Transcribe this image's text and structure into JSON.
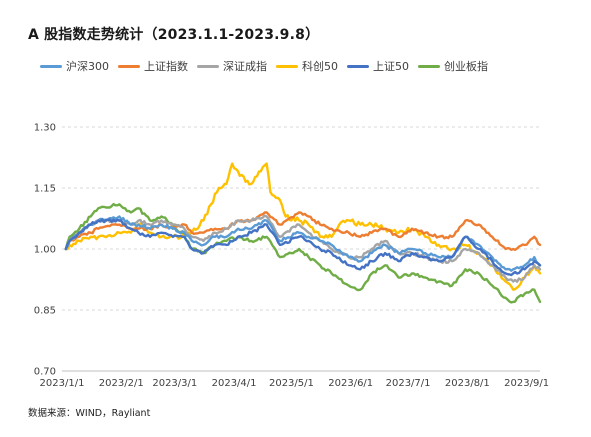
{
  "title": "A 股指数走势统计（2023.1.1-2023.9.8）",
  "source": "数据来源：WIND，Rayliant",
  "colors": {
    "hs300": "#5b9bd5",
    "sz": "#ed7d31",
    "szcz": "#a5a5a5",
    "kc50": "#ffc000",
    "sz50": "#4472c4",
    "cyb": "#70ad47"
  },
  "chart_data": {
    "type": "line",
    "title": "A 股指数走势统计（2023.1.1-2023.9.8）",
    "xlabel": "",
    "ylabel": "",
    "ylim": [
      0.7,
      1.3
    ],
    "yticks": [
      "0.70",
      "0.85",
      "1.00",
      "1.15",
      "1.30"
    ],
    "xticks": [
      "2023/1/1",
      "2023/2/1",
      "2023/3/1",
      "2023/4/1",
      "2023/5/1",
      "2023/6/1",
      "2023/7/1",
      "2023/8/1",
      "2023/9/1"
    ],
    "grid": true,
    "legend": "top",
    "series": [
      {
        "key": "hs300",
        "name": "沪深300",
        "points": [
          [
            "2023-01-03",
            1.0
          ],
          [
            "2023-01-05",
            1.02
          ],
          [
            "2023-01-10",
            1.04
          ],
          [
            "2023-01-16",
            1.06
          ],
          [
            "2023-01-20",
            1.07
          ],
          [
            "2023-01-31",
            1.08
          ],
          [
            "2023-02-06",
            1.06
          ],
          [
            "2023-02-10",
            1.06
          ],
          [
            "2023-02-16",
            1.05
          ],
          [
            "2023-02-22",
            1.06
          ],
          [
            "2023-02-28",
            1.05
          ],
          [
            "2023-03-06",
            1.04
          ],
          [
            "2023-03-10",
            1.02
          ],
          [
            "2023-03-16",
            1.01
          ],
          [
            "2023-03-22",
            1.03
          ],
          [
            "2023-03-28",
            1.03
          ],
          [
            "2023-04-03",
            1.05
          ],
          [
            "2023-04-10",
            1.05
          ],
          [
            "2023-04-18",
            1.07
          ],
          [
            "2023-04-25",
            1.02
          ],
          [
            "2023-05-05",
            1.04
          ],
          [
            "2023-05-10",
            1.03
          ],
          [
            "2023-05-16",
            1.02
          ],
          [
            "2023-05-22",
            1.01
          ],
          [
            "2023-05-31",
            0.98
          ],
          [
            "2023-06-06",
            0.97
          ],
          [
            "2023-06-12",
            0.99
          ],
          [
            "2023-06-19",
            1.01
          ],
          [
            "2023-06-26",
            0.99
          ],
          [
            "2023-07-03",
            1.0
          ],
          [
            "2023-07-10",
            0.99
          ],
          [
            "2023-07-17",
            0.98
          ],
          [
            "2023-07-24",
            0.98
          ],
          [
            "2023-07-31",
            1.03
          ],
          [
            "2023-08-07",
            1.01
          ],
          [
            "2023-08-14",
            0.98
          ],
          [
            "2023-08-21",
            0.95
          ],
          [
            "2023-08-25",
            0.95
          ],
          [
            "2023-08-31",
            0.96
          ],
          [
            "2023-09-05",
            0.98
          ],
          [
            "2023-09-08",
            0.96
          ]
        ]
      },
      {
        "key": "sz",
        "name": "上证指数",
        "points": [
          [
            "2023-01-03",
            1.0
          ],
          [
            "2023-01-05",
            1.02
          ],
          [
            "2023-01-10",
            1.03
          ],
          [
            "2023-01-16",
            1.04
          ],
          [
            "2023-01-20",
            1.05
          ],
          [
            "2023-01-31",
            1.06
          ],
          [
            "2023-02-06",
            1.05
          ],
          [
            "2023-02-10",
            1.05
          ],
          [
            "2023-02-16",
            1.05
          ],
          [
            "2023-02-22",
            1.06
          ],
          [
            "2023-02-28",
            1.05
          ],
          [
            "2023-03-06",
            1.06
          ],
          [
            "2023-03-10",
            1.04
          ],
          [
            "2023-03-16",
            1.04
          ],
          [
            "2023-03-22",
            1.05
          ],
          [
            "2023-03-28",
            1.05
          ],
          [
            "2023-04-03",
            1.07
          ],
          [
            "2023-04-10",
            1.07
          ],
          [
            "2023-04-18",
            1.09
          ],
          [
            "2023-04-25",
            1.06
          ],
          [
            "2023-05-05",
            1.09
          ],
          [
            "2023-05-10",
            1.08
          ],
          [
            "2023-05-16",
            1.06
          ],
          [
            "2023-05-22",
            1.05
          ],
          [
            "2023-05-31",
            1.04
          ],
          [
            "2023-06-06",
            1.03
          ],
          [
            "2023-06-12",
            1.04
          ],
          [
            "2023-06-19",
            1.05
          ],
          [
            "2023-06-26",
            1.03
          ],
          [
            "2023-07-03",
            1.05
          ],
          [
            "2023-07-10",
            1.04
          ],
          [
            "2023-07-17",
            1.03
          ],
          [
            "2023-07-24",
            1.03
          ],
          [
            "2023-07-31",
            1.07
          ],
          [
            "2023-08-07",
            1.06
          ],
          [
            "2023-08-14",
            1.03
          ],
          [
            "2023-08-21",
            1.0
          ],
          [
            "2023-08-25",
            1.0
          ],
          [
            "2023-08-31",
            1.01
          ],
          [
            "2023-09-05",
            1.03
          ],
          [
            "2023-09-08",
            1.01
          ]
        ]
      },
      {
        "key": "szcz",
        "name": "深证成指",
        "points": [
          [
            "2023-01-03",
            1.0
          ],
          [
            "2023-01-05",
            1.02
          ],
          [
            "2023-01-10",
            1.04
          ],
          [
            "2023-01-16",
            1.06
          ],
          [
            "2023-01-20",
            1.07
          ],
          [
            "2023-01-31",
            1.07
          ],
          [
            "2023-02-06",
            1.06
          ],
          [
            "2023-02-10",
            1.07
          ],
          [
            "2023-02-16",
            1.06
          ],
          [
            "2023-02-22",
            1.07
          ],
          [
            "2023-02-28",
            1.06
          ],
          [
            "2023-03-06",
            1.05
          ],
          [
            "2023-03-10",
            1.03
          ],
          [
            "2023-03-16",
            1.02
          ],
          [
            "2023-03-22",
            1.04
          ],
          [
            "2023-03-28",
            1.05
          ],
          [
            "2023-04-03",
            1.07
          ],
          [
            "2023-04-10",
            1.07
          ],
          [
            "2023-04-18",
            1.08
          ],
          [
            "2023-04-25",
            1.03
          ],
          [
            "2023-05-05",
            1.06
          ],
          [
            "2023-05-10",
            1.04
          ],
          [
            "2023-05-16",
            1.02
          ],
          [
            "2023-05-22",
            1.0
          ],
          [
            "2023-05-31",
            0.98
          ],
          [
            "2023-06-06",
            0.98
          ],
          [
            "2023-06-12",
            1.0
          ],
          [
            "2023-06-19",
            1.02
          ],
          [
            "2023-06-26",
            0.99
          ],
          [
            "2023-07-03",
            0.99
          ],
          [
            "2023-07-10",
            0.98
          ],
          [
            "2023-07-17",
            0.97
          ],
          [
            "2023-07-24",
            0.97
          ],
          [
            "2023-07-31",
            1.0
          ],
          [
            "2023-08-07",
            0.99
          ],
          [
            "2023-08-14",
            0.96
          ],
          [
            "2023-08-21",
            0.93
          ],
          [
            "2023-08-25",
            0.92
          ],
          [
            "2023-08-31",
            0.93
          ],
          [
            "2023-09-05",
            0.96
          ],
          [
            "2023-09-08",
            0.95
          ]
        ]
      },
      {
        "key": "kc50",
        "name": "科创50",
        "points": [
          [
            "2023-01-03",
            1.0
          ],
          [
            "2023-01-05",
            1.01
          ],
          [
            "2023-01-10",
            1.02
          ],
          [
            "2023-01-16",
            1.03
          ],
          [
            "2023-01-20",
            1.03
          ],
          [
            "2023-01-31",
            1.04
          ],
          [
            "2023-02-06",
            1.04
          ],
          [
            "2023-02-10",
            1.06
          ],
          [
            "2023-02-16",
            1.04
          ],
          [
            "2023-02-22",
            1.03
          ],
          [
            "2023-02-28",
            1.03
          ],
          [
            "2023-03-06",
            1.03
          ],
          [
            "2023-03-10",
            1.04
          ],
          [
            "2023-03-16",
            1.07
          ],
          [
            "2023-03-20",
            1.11
          ],
          [
            "2023-03-24",
            1.15
          ],
          [
            "2023-03-28",
            1.16
          ],
          [
            "2023-03-31",
            1.21
          ],
          [
            "2023-04-04",
            1.18
          ],
          [
            "2023-04-10",
            1.16
          ],
          [
            "2023-04-14",
            1.19
          ],
          [
            "2023-04-18",
            1.21
          ],
          [
            "2023-04-20",
            1.14
          ],
          [
            "2023-04-25",
            1.12
          ],
          [
            "2023-04-28",
            1.08
          ],
          [
            "2023-05-05",
            1.07
          ],
          [
            "2023-05-10",
            1.06
          ],
          [
            "2023-05-16",
            1.03
          ],
          [
            "2023-05-22",
            1.03
          ],
          [
            "2023-05-26",
            1.06
          ],
          [
            "2023-05-31",
            1.07
          ],
          [
            "2023-06-06",
            1.06
          ],
          [
            "2023-06-12",
            1.06
          ],
          [
            "2023-06-19",
            1.05
          ],
          [
            "2023-06-26",
            1.04
          ],
          [
            "2023-07-03",
            1.05
          ],
          [
            "2023-07-10",
            1.03
          ],
          [
            "2023-07-17",
            1.01
          ],
          [
            "2023-07-24",
            1.0
          ],
          [
            "2023-07-31",
            1.01
          ],
          [
            "2023-08-07",
            0.99
          ],
          [
            "2023-08-14",
            0.96
          ],
          [
            "2023-08-21",
            0.92
          ],
          [
            "2023-08-25",
            0.9
          ],
          [
            "2023-08-31",
            0.93
          ],
          [
            "2023-09-05",
            0.96
          ],
          [
            "2023-09-08",
            0.94
          ]
        ]
      },
      {
        "key": "sz50",
        "name": "上证50",
        "points": [
          [
            "2023-01-03",
            1.0
          ],
          [
            "2023-01-05",
            1.02
          ],
          [
            "2023-01-10",
            1.04
          ],
          [
            "2023-01-16",
            1.06
          ],
          [
            "2023-01-20",
            1.07
          ],
          [
            "2023-01-31",
            1.07
          ],
          [
            "2023-02-06",
            1.05
          ],
          [
            "2023-02-10",
            1.04
          ],
          [
            "2023-02-16",
            1.03
          ],
          [
            "2023-02-22",
            1.04
          ],
          [
            "2023-02-28",
            1.03
          ],
          [
            "2023-03-06",
            1.03
          ],
          [
            "2023-03-10",
            1.0
          ],
          [
            "2023-03-16",
            0.99
          ],
          [
            "2023-03-22",
            1.01
          ],
          [
            "2023-03-28",
            1.01
          ],
          [
            "2023-04-03",
            1.03
          ],
          [
            "2023-04-10",
            1.04
          ],
          [
            "2023-04-18",
            1.06
          ],
          [
            "2023-04-25",
            1.01
          ],
          [
            "2023-05-05",
            1.03
          ],
          [
            "2023-05-10",
            1.02
          ],
          [
            "2023-05-16",
            1.0
          ],
          [
            "2023-05-22",
            0.99
          ],
          [
            "2023-05-31",
            0.96
          ],
          [
            "2023-06-06",
            0.95
          ],
          [
            "2023-06-12",
            0.97
          ],
          [
            "2023-06-19",
            0.99
          ],
          [
            "2023-06-26",
            0.97
          ],
          [
            "2023-07-03",
            0.99
          ],
          [
            "2023-07-10",
            0.98
          ],
          [
            "2023-07-17",
            0.97
          ],
          [
            "2023-07-24",
            0.98
          ],
          [
            "2023-07-31",
            1.03
          ],
          [
            "2023-08-07",
            1.0
          ],
          [
            "2023-08-14",
            0.97
          ],
          [
            "2023-08-21",
            0.94
          ],
          [
            "2023-08-25",
            0.94
          ],
          [
            "2023-08-31",
            0.95
          ],
          [
            "2023-09-05",
            0.97
          ],
          [
            "2023-09-08",
            0.96
          ]
        ]
      },
      {
        "key": "cyb",
        "name": "创业板指",
        "points": [
          [
            "2023-01-03",
            1.0
          ],
          [
            "2023-01-05",
            1.03
          ],
          [
            "2023-01-10",
            1.05
          ],
          [
            "2023-01-16",
            1.08
          ],
          [
            "2023-01-20",
            1.1
          ],
          [
            "2023-01-31",
            1.11
          ],
          [
            "2023-02-06",
            1.09
          ],
          [
            "2023-02-10",
            1.1
          ],
          [
            "2023-02-16",
            1.07
          ],
          [
            "2023-02-22",
            1.08
          ],
          [
            "2023-02-28",
            1.06
          ],
          [
            "2023-03-06",
            1.03
          ],
          [
            "2023-03-10",
            1.0
          ],
          [
            "2023-03-16",
            0.99
          ],
          [
            "2023-03-22",
            1.01
          ],
          [
            "2023-03-28",
            1.02
          ],
          [
            "2023-04-03",
            1.03
          ],
          [
            "2023-04-10",
            1.02
          ],
          [
            "2023-04-18",
            1.03
          ],
          [
            "2023-04-25",
            0.98
          ],
          [
            "2023-05-05",
            1.0
          ],
          [
            "2023-05-10",
            0.98
          ],
          [
            "2023-05-16",
            0.96
          ],
          [
            "2023-05-22",
            0.94
          ],
          [
            "2023-05-31",
            0.91
          ],
          [
            "2023-06-06",
            0.9
          ],
          [
            "2023-06-12",
            0.94
          ],
          [
            "2023-06-19",
            0.96
          ],
          [
            "2023-06-26",
            0.93
          ],
          [
            "2023-07-03",
            0.94
          ],
          [
            "2023-07-10",
            0.93
          ],
          [
            "2023-07-17",
            0.92
          ],
          [
            "2023-07-24",
            0.91
          ],
          [
            "2023-07-31",
            0.95
          ],
          [
            "2023-08-07",
            0.94
          ],
          [
            "2023-08-14",
            0.91
          ],
          [
            "2023-08-21",
            0.88
          ],
          [
            "2023-08-25",
            0.87
          ],
          [
            "2023-08-31",
            0.89
          ],
          [
            "2023-09-05",
            0.9
          ],
          [
            "2023-09-08",
            0.87
          ]
        ]
      }
    ]
  }
}
